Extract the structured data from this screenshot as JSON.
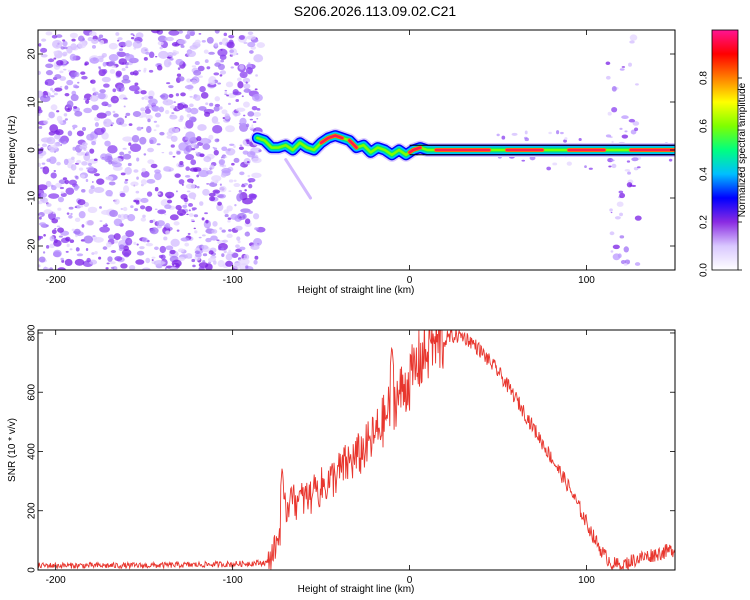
{
  "title": "S206.2026.113.09.02.C21",
  "chart_data": [
    {
      "type": "heatmap",
      "name": "spectrogram",
      "xlabel": "Height of straight line (km)",
      "ylabel": "Frequency (Hz)",
      "xlim": [
        -210,
        150
      ],
      "ylim": [
        -25,
        25
      ],
      "xticks": [
        -200,
        -100,
        0,
        100
      ],
      "yticks": [
        -20,
        -10,
        0,
        10,
        20
      ],
      "noise_region": {
        "x_from": -210,
        "x_to": -84
      },
      "outlier_region": {
        "x_from": 112,
        "x_to": 130
      },
      "carrier_line": {
        "x_from": 0,
        "x_to": 150,
        "y_upper": 1,
        "y_lower": -1
      },
      "ridge": {
        "x": [
          -86,
          -82,
          -78,
          -74,
          -70,
          -66,
          -62,
          -58,
          -54,
          -50,
          -46,
          -42,
          -38,
          -34,
          -30,
          -26,
          -22,
          -18,
          -14,
          -10,
          -6,
          -2,
          2,
          6,
          10,
          20,
          40,
          60,
          80,
          100,
          120,
          140,
          150
        ],
        "y": [
          2.5,
          2,
          0.5,
          0.5,
          1,
          0,
          1.5,
          0.5,
          0,
          1.5,
          2.5,
          3,
          2.5,
          2,
          0.5,
          1,
          -0.5,
          0.5,
          0,
          -1,
          0,
          -1,
          0,
          0.5,
          0,
          0,
          0,
          0,
          0,
          0,
          0,
          0,
          0
        ]
      },
      "colorbar": {
        "label": "Normalized spectral amplitude",
        "range": [
          0,
          1
        ],
        "ticks": [
          "0.0",
          "0.2",
          "0.4",
          "0.6",
          "0.8"
        ],
        "colors": [
          "#ffffff",
          "#d9c8ff",
          "#8a2be2",
          "#0000ff",
          "#00bfff",
          "#00ff80",
          "#7fff00",
          "#ffff00",
          "#ff8000",
          "#ff0000",
          "#ff1493"
        ]
      }
    },
    {
      "type": "line",
      "name": "snr",
      "xlabel": "Height of straight line (km)",
      "ylabel": "SNR (10 * v/v)",
      "xlim": [
        -210,
        150
      ],
      "ylim": [
        0,
        810
      ],
      "xticks": [
        -200,
        -100,
        0,
        100
      ],
      "yticks": [
        0,
        200,
        400,
        600,
        800
      ],
      "color": "#e8362e",
      "series": [
        {
          "name": "SNR",
          "x": [
            -210,
            -150,
            -100,
            -80,
            -75,
            -70,
            -65,
            -60,
            -55,
            -50,
            -45,
            -40,
            -35,
            -30,
            -25,
            -20,
            -15,
            -10,
            -5,
            0,
            5,
            10,
            15,
            20,
            25,
            30,
            35,
            40,
            50,
            60,
            70,
            80,
            90,
            100,
            105,
            110,
            115,
            120,
            125,
            130,
            140,
            150
          ],
          "y": [
            15,
            15,
            20,
            25,
            90,
            210,
            230,
            240,
            250,
            280,
            300,
            330,
            360,
            380,
            410,
            450,
            500,
            560,
            600,
            640,
            700,
            740,
            760,
            780,
            790,
            790,
            770,
            740,
            670,
            580,
            480,
            380,
            280,
            160,
            100,
            50,
            20,
            15,
            30,
            40,
            55,
            70
          ]
        }
      ],
      "spikes": [
        {
          "x": -72,
          "y": 350
        },
        {
          "x": -67,
          "y": 290
        },
        {
          "x": -63,
          "y": 230
        },
        {
          "x": -54,
          "y": 310
        },
        {
          "x": -40,
          "y": 300
        },
        {
          "x": -25,
          "y": 390
        },
        {
          "x": -17,
          "y": 440
        },
        {
          "x": -10,
          "y": 760
        },
        {
          "x": -3,
          "y": 520
        },
        {
          "x": 4,
          "y": 640
        },
        {
          "x": 12,
          "y": 780
        }
      ]
    }
  ]
}
